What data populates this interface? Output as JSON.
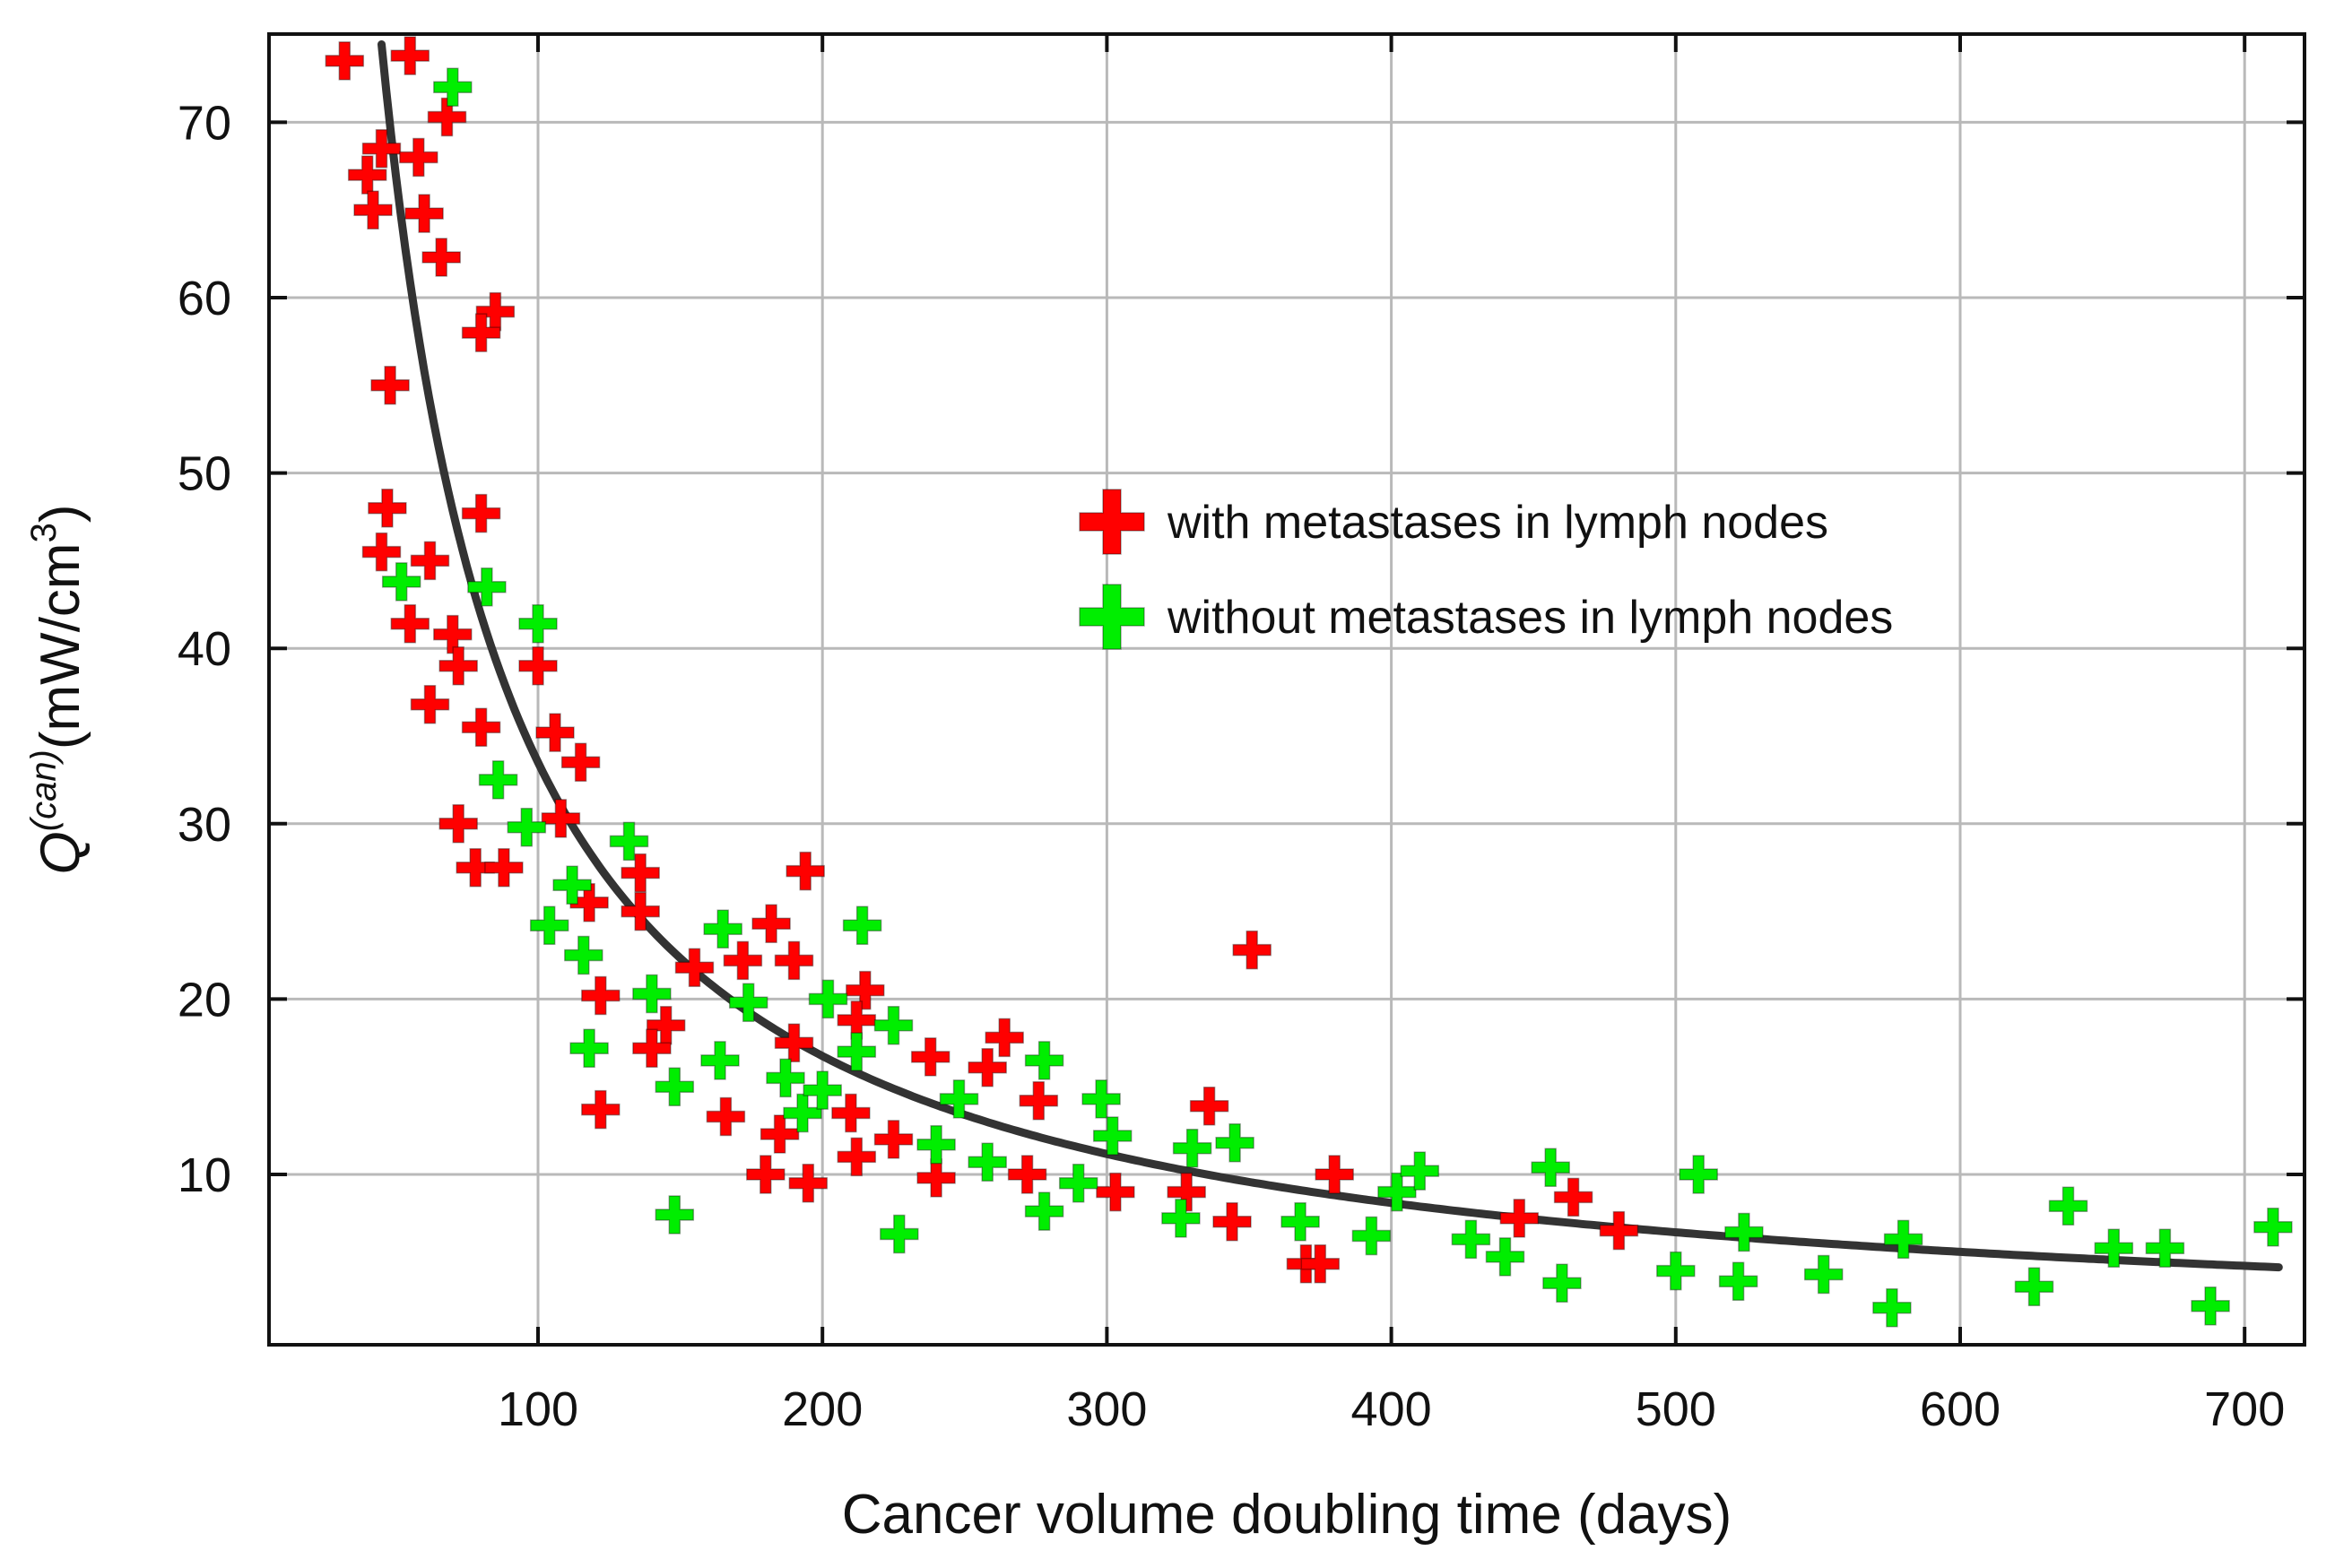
{
  "chart_data": {
    "type": "scatter",
    "xlabel": "Cancer volume doubling time (days)",
    "ylabel": {
      "base": "Q",
      "superscript": "(can)",
      "units": "(mW/cm",
      "units_superscript": "3",
      "units_close": ")"
    },
    "xlim": [
      0,
      722
    ],
    "ylim": [
      0,
      75
    ],
    "xticks": [
      100,
      200,
      300,
      400,
      500,
      600,
      700
    ],
    "yticks": [
      10,
      20,
      30,
      40,
      50,
      60,
      70
    ],
    "grid": true,
    "legend_position": "upper-right-center",
    "series": [
      {
        "name": "with metastases in lymph nodes",
        "color": "#ff0000",
        "marker": "cross",
        "points": [
          [
            32,
            73.5
          ],
          [
            55,
            73.8
          ],
          [
            45,
            68.5
          ],
          [
            40,
            67
          ],
          [
            58,
            68
          ],
          [
            68,
            70.3
          ],
          [
            42,
            65
          ],
          [
            60,
            64.8
          ],
          [
            66,
            62.3
          ],
          [
            85,
            59.2
          ],
          [
            80,
            58
          ],
          [
            48,
            55
          ],
          [
            47,
            48
          ],
          [
            80,
            47.7
          ],
          [
            45,
            45.5
          ],
          [
            62,
            45
          ],
          [
            55,
            41.4
          ],
          [
            70,
            40.8
          ],
          [
            72,
            39
          ],
          [
            62,
            36.8
          ],
          [
            80,
            35.5
          ],
          [
            100,
            39
          ],
          [
            106,
            35.2
          ],
          [
            115,
            33.5
          ],
          [
            72,
            30
          ],
          [
            108,
            30.3
          ],
          [
            78,
            27.5
          ],
          [
            88,
            27.5
          ],
          [
            118,
            25.5
          ],
          [
            136,
            27.2
          ],
          [
            136,
            25
          ],
          [
            122,
            20.2
          ],
          [
            155,
            21.8
          ],
          [
            145,
            18.5
          ],
          [
            140,
            17.2
          ],
          [
            122,
            13.7
          ],
          [
            172,
            22.2
          ],
          [
            182,
            24.3
          ],
          [
            190,
            22.2
          ],
          [
            194,
            27.3
          ],
          [
            190,
            17.5
          ],
          [
            166,
            13.3
          ],
          [
            185,
            12.3
          ],
          [
            180,
            10
          ],
          [
            195,
            9.5
          ],
          [
            210,
            13.5
          ],
          [
            215,
            20.5
          ],
          [
            212,
            18.8
          ],
          [
            212,
            11
          ],
          [
            225,
            12
          ],
          [
            238,
            16.7
          ],
          [
            240,
            9.8
          ],
          [
            258,
            16.1
          ],
          [
            264,
            17.8
          ],
          [
            272,
            10
          ],
          [
            276,
            14.2
          ],
          [
            303,
            9
          ],
          [
            328,
            9
          ],
          [
            336,
            13.9
          ],
          [
            344,
            7.3
          ],
          [
            351,
            22.8
          ],
          [
            370,
            4.9
          ],
          [
            375,
            4.9
          ],
          [
            380,
            10
          ],
          [
            445,
            7.5
          ],
          [
            464,
            8.7
          ],
          [
            480,
            6.8
          ]
        ]
      },
      {
        "name": "without metastases in lymph nodes",
        "color": "#00ee00",
        "marker": "cross",
        "points": [
          [
            70,
            72
          ],
          [
            52,
            43.8
          ],
          [
            82,
            43.5
          ],
          [
            100,
            41.4
          ],
          [
            86,
            32.5
          ],
          [
            96,
            29.8
          ],
          [
            112,
            26.5
          ],
          [
            132,
            29
          ],
          [
            104,
            24.2
          ],
          [
            116,
            22.5
          ],
          [
            118,
            17.2
          ],
          [
            140,
            20.3
          ],
          [
            148,
            15
          ],
          [
            148,
            7.7
          ],
          [
            165,
            24
          ],
          [
            164,
            16.5
          ],
          [
            174,
            19.8
          ],
          [
            187,
            15.5
          ],
          [
            193,
            13.5
          ],
          [
            200,
            14.8
          ],
          [
            202,
            20
          ],
          [
            214,
            24.2
          ],
          [
            212,
            17
          ],
          [
            225,
            18.5
          ],
          [
            227,
            6.6
          ],
          [
            240,
            11.7
          ],
          [
            248,
            14.3
          ],
          [
            258,
            10.7
          ],
          [
            278,
            16.5
          ],
          [
            278,
            7.9
          ],
          [
            290,
            9.5
          ],
          [
            298,
            14.3
          ],
          [
            302,
            12.2
          ],
          [
            326,
            7.5
          ],
          [
            330,
            11.5
          ],
          [
            345,
            11.8
          ],
          [
            368,
            7.3
          ],
          [
            393,
            6.5
          ],
          [
            402,
            9
          ],
          [
            410,
            10.2
          ],
          [
            428,
            6.3
          ],
          [
            440,
            5.3
          ],
          [
            456,
            10.4
          ],
          [
            460,
            3.8
          ],
          [
            500,
            4.5
          ],
          [
            508,
            10
          ],
          [
            522,
            3.9
          ],
          [
            524,
            6.7
          ],
          [
            552,
            4.3
          ],
          [
            576,
            2.4
          ],
          [
            580,
            6.3
          ],
          [
            626,
            3.6
          ],
          [
            638,
            8.2
          ],
          [
            654,
            5.8
          ],
          [
            672,
            5.8
          ],
          [
            688,
            2.5
          ],
          [
            710,
            7
          ]
        ]
      },
      {
        "name": "fit curve",
        "color": "#333333",
        "type": "line",
        "function": "Q = 3350 / t",
        "t_range": [
          45,
          712
        ]
      }
    ],
    "legend": [
      {
        "label": "with metastases in lymph nodes",
        "color": "#ff0000"
      },
      {
        "label": "without metastases in lymph nodes",
        "color": "#00ee00"
      }
    ]
  }
}
